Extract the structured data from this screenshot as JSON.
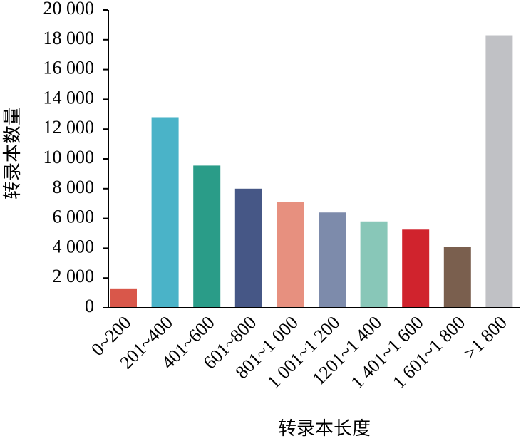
{
  "chart_data": {
    "type": "bar",
    "xlabel": "转录本长度",
    "ylabel": "转录本数量",
    "categories": [
      "0~200",
      "201~400",
      "401~600",
      "601~800",
      "801~1 000",
      "1 001~1 200",
      "1201~1 400",
      "1 401~1 600",
      "1 601~1 800",
      ">1 800"
    ],
    "values": [
      1300,
      12800,
      9550,
      8000,
      7100,
      6400,
      5800,
      5250,
      4100,
      18300
    ],
    "colors": [
      "#d9574a",
      "#4ab3c8",
      "#2a9c88",
      "#465786",
      "#e7907f",
      "#7d8bab",
      "#88c7b8",
      "#d0232d",
      "#7a5f4e",
      "#c0c1c5"
    ],
    "ylim": [
      0,
      20000
    ],
    "yticks": [
      0,
      {
        "value": 2000,
        "label": "2 000"
      },
      {
        "value": 4000,
        "label": "4 000"
      },
      {
        "value": 6000,
        "label": "6 000"
      },
      {
        "value": 8000,
        "label": "8 000"
      },
      {
        "value": 10000,
        "label": "10 000"
      },
      {
        "value": 12000,
        "label": "12 000"
      },
      {
        "value": 14000,
        "label": "14 000"
      },
      {
        "value": 16000,
        "label": "16 000"
      },
      {
        "value": 18000,
        "label": "18 000"
      },
      {
        "value": 20000,
        "label": "20 000"
      }
    ],
    "grid": false
  }
}
